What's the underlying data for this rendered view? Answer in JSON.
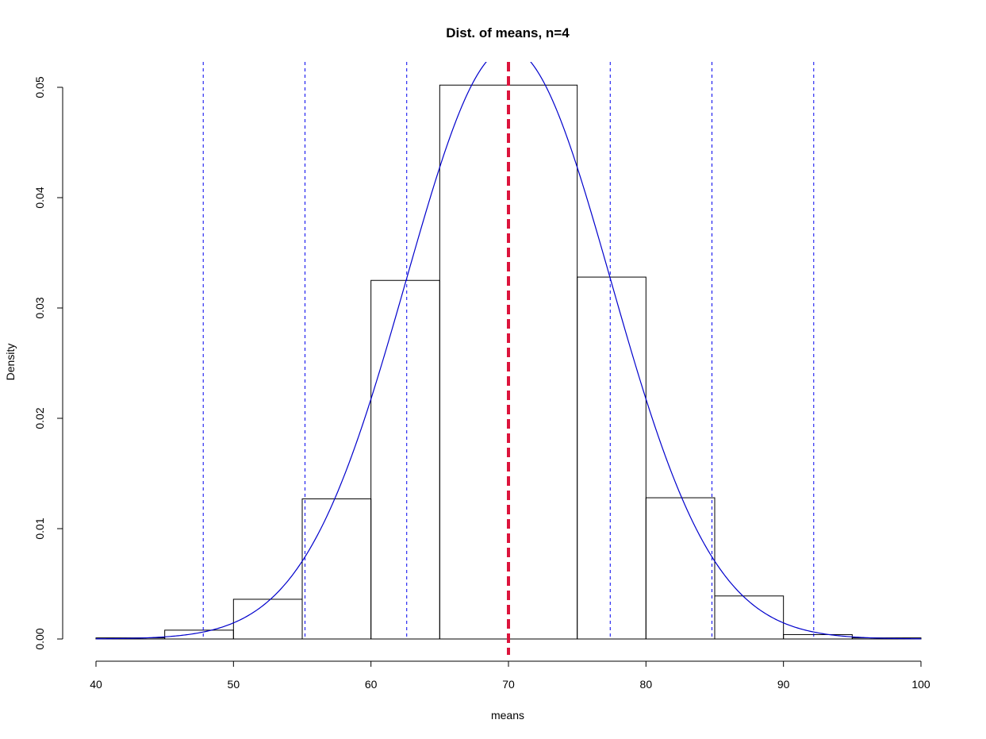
{
  "chart_data": {
    "type": "bar",
    "title": "Dist. of means, n=4",
    "xlabel": "means",
    "ylabel": "Density",
    "xlim": [
      40,
      100
    ],
    "ylim": [
      0,
      0.05
    ],
    "xticks": [
      "40",
      "50",
      "60",
      "70",
      "80",
      "90",
      "100"
    ],
    "yticks": [
      "0.00",
      "0.01",
      "0.02",
      "0.03",
      "0.04",
      "0.05"
    ],
    "bins": [
      {
        "x0": 40,
        "x1": 45,
        "density": 0.0001
      },
      {
        "x0": 45,
        "x1": 50,
        "density": 0.0008
      },
      {
        "x0": 50,
        "x1": 55,
        "density": 0.0036
      },
      {
        "x0": 55,
        "x1": 60,
        "density": 0.0127
      },
      {
        "x0": 60,
        "x1": 65,
        "density": 0.0325
      },
      {
        "x0": 65,
        "x1": 75,
        "density": 0.0502
      },
      {
        "x0": 75,
        "x1": 80,
        "density": 0.0328
      },
      {
        "x0": 80,
        "x1": 85,
        "density": 0.0128
      },
      {
        "x0": 85,
        "x1": 90,
        "density": 0.0039
      },
      {
        "x0": 90,
        "x1": 95,
        "density": 0.0004
      },
      {
        "x0": 95,
        "x1": 100,
        "density": 0.0001
      }
    ],
    "normal_curve": {
      "mean": 70,
      "sd": 7.45,
      "color": "#0000cc"
    },
    "vlines": {
      "sd_lines": [
        47.8,
        55.2,
        62.6,
        77.4,
        84.8,
        92.2
      ],
      "sd_color": "#0000ee",
      "mean_line": 70,
      "mean_color": "#dc143c"
    },
    "grid": false,
    "legend": "none"
  }
}
